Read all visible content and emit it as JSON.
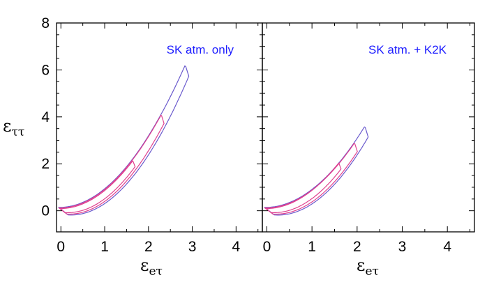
{
  "chart_data": [
    {
      "type": "line",
      "panel_label": "SK atm. only",
      "xlabel": "ε",
      "xlabel_sub": "eτ",
      "ylabel": "ε",
      "ylabel_sub": "ττ",
      "xlim": [
        -0.1,
        4.6
      ],
      "ylim": [
        -0.9,
        8.0
      ],
      "xticks": [
        "0",
        "1",
        "2",
        "3",
        "4"
      ],
      "yticks": [
        "0",
        "2",
        "4",
        "6",
        "8"
      ],
      "colors": {
        "outer": "#6a5acd",
        "inner": "#e0408f",
        "label": "#1c1cff"
      },
      "series": [
        {
          "level": "outer",
          "x_tip": 2.85,
          "y_tip": 6.15,
          "y_lower": -0.18,
          "y_upper": 0.12,
          "width_tip": 0.13,
          "width_base": 0.3
        },
        {
          "level": "inner",
          "x_tip": 2.3,
          "y_tip": 4.05,
          "y_lower": -0.14,
          "y_upper": 0.1,
          "width_tip": 0.1,
          "width_base": 0.24
        },
        {
          "level": "inner",
          "x_tip": 1.65,
          "y_tip": 2.1,
          "y_lower": -0.08,
          "y_upper": 0.07,
          "width_tip": 0.08,
          "width_base": 0.17
        }
      ]
    },
    {
      "type": "line",
      "panel_label": "SK atm. + K2K",
      "xlabel": "ε",
      "xlabel_sub": "eτ",
      "ylabel": "",
      "ylabel_sub": "",
      "xlim": [
        -0.1,
        4.6
      ],
      "ylim": [
        -0.9,
        8.0
      ],
      "xticks": [
        "0",
        "1",
        "2",
        "3",
        "4"
      ],
      "yticks": [],
      "colors": {
        "outer": "#6a5acd",
        "inner": "#e0408f",
        "label": "#1c1cff"
      },
      "series": [
        {
          "level": "outer",
          "x_tip": 2.18,
          "y_tip": 3.55,
          "y_lower": -0.18,
          "y_upper": 0.12,
          "width_tip": 0.12,
          "width_base": 0.3
        },
        {
          "level": "inner",
          "x_tip": 1.95,
          "y_tip": 2.85,
          "y_lower": -0.14,
          "y_upper": 0.1,
          "width_tip": 0.1,
          "width_base": 0.24
        },
        {
          "level": "inner",
          "x_tip": 1.6,
          "y_tip": 2.0,
          "y_lower": -0.08,
          "y_upper": 0.07,
          "width_tip": 0.08,
          "width_base": 0.17
        }
      ]
    }
  ]
}
